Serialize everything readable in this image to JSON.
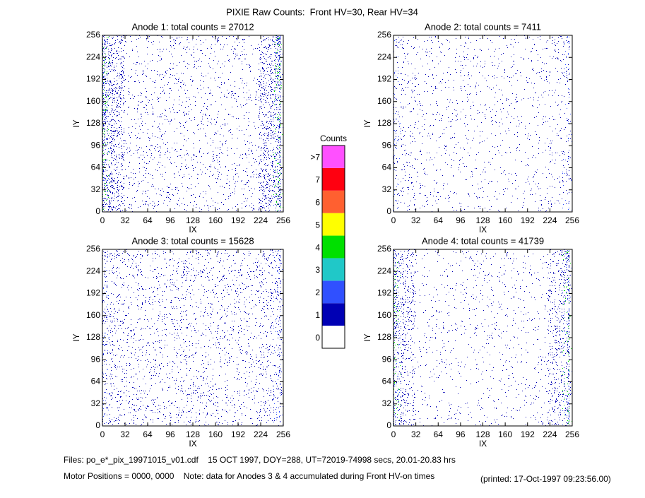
{
  "title": "PIXIE Raw Counts:  Front HV=30, Rear HV=34",
  "chart_data": [
    {
      "type": "heatmap",
      "title": "Anode 1: total counts = 27012",
      "xlabel": "IX",
      "ylabel": "IY",
      "xlim": [
        0,
        256
      ],
      "ylim": [
        0,
        256
      ],
      "xticks": [
        0,
        32,
        64,
        96,
        128,
        160,
        192,
        224,
        256
      ],
      "yticks": [
        0,
        32,
        64,
        96,
        128,
        160,
        192,
        224,
        256
      ]
    },
    {
      "type": "heatmap",
      "title": "Anode 2: total counts = 7411",
      "xlabel": "IX",
      "ylabel": "IY",
      "xlim": [
        0,
        256
      ],
      "ylim": [
        0,
        256
      ],
      "xticks": [
        0,
        32,
        64,
        96,
        128,
        160,
        192,
        224,
        256
      ],
      "yticks": [
        0,
        32,
        64,
        96,
        128,
        160,
        192,
        224,
        256
      ]
    },
    {
      "type": "heatmap",
      "title": "Anode 3: total counts = 15628",
      "xlabel": "IX",
      "ylabel": "IY",
      "xlim": [
        0,
        256
      ],
      "ylim": [
        0,
        256
      ],
      "xticks": [
        0,
        32,
        64,
        96,
        128,
        160,
        192,
        224,
        256
      ],
      "yticks": [
        0,
        32,
        64,
        96,
        128,
        160,
        192,
        224,
        256
      ]
    },
    {
      "type": "heatmap",
      "title": "Anode 4: total counts = 41739",
      "xlabel": "IX",
      "ylabel": "IY",
      "xlim": [
        0,
        256
      ],
      "ylim": [
        0,
        256
      ],
      "xticks": [
        0,
        32,
        64,
        96,
        128,
        160,
        192,
        224,
        256
      ],
      "yticks": [
        0,
        32,
        64,
        96,
        128,
        160,
        192,
        224,
        256
      ]
    }
  ],
  "colorbar": {
    "title": "Counts",
    "labels": [
      0,
      1,
      2,
      3,
      4,
      5,
      6,
      7,
      ">7"
    ],
    "colors": [
      "#ffffff",
      "#0000b4",
      "#3050ff",
      "#20c8c8",
      "#00e000",
      "#ffff00",
      "#ff6030",
      "#ff0010",
      "#ff50ff"
    ]
  },
  "footer": {
    "files": "Files: po_e*_pix_19971015_v01.cdf    15 OCT 1997, DOY=288, UT=72019-74998 secs, 20.01-20.83 hrs",
    "motor": "Motor Positions = 0000, 0000    Note: data for Anodes 3 & 4 accumulated during Front HV-on times",
    "printed": "(printed: 17-Oct-1997 09:23:56.00)"
  }
}
